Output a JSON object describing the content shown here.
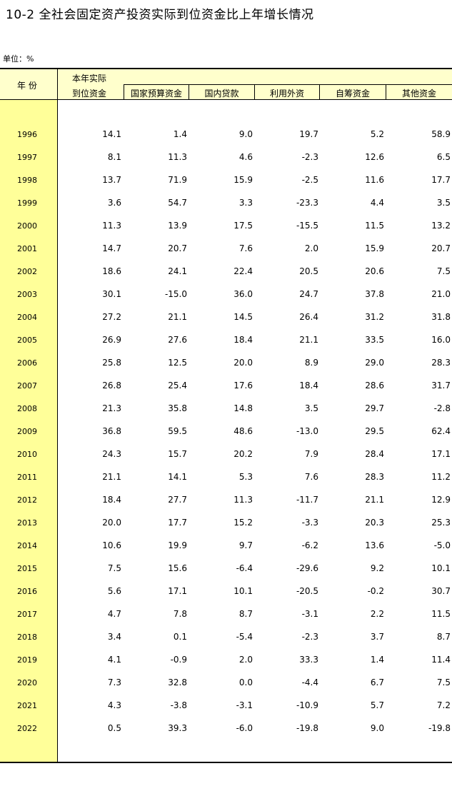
{
  "title": "10-2  全社会固定资产投资实际到位资金比上年增长情况",
  "unit": "单位：%",
  "headers": {
    "year": "年 份",
    "total_line1": "本年实际",
    "total_line2": "到位资金",
    "cols": [
      "国家预算资金",
      "国内贷款",
      "利用外资",
      "自筹资金",
      "其他资金"
    ]
  },
  "rows": [
    {
      "year": "1996",
      "v": [
        "14.1",
        "1.4",
        "9.0",
        "19.7",
        "5.2",
        "58.9"
      ]
    },
    {
      "year": "1997",
      "v": [
        "8.1",
        "11.3",
        "4.6",
        "-2.3",
        "12.6",
        "6.5"
      ]
    },
    {
      "year": "1998",
      "v": [
        "13.7",
        "71.9",
        "15.9",
        "-2.5",
        "11.6",
        "17.7"
      ]
    },
    {
      "year": "1999",
      "v": [
        "3.6",
        "54.7",
        "3.3",
        "-23.3",
        "4.4",
        "3.5"
      ]
    },
    {
      "year": "2000",
      "v": [
        "11.3",
        "13.9",
        "17.5",
        "-15.5",
        "11.5",
        "13.2"
      ]
    },
    {
      "year": "2001",
      "v": [
        "14.7",
        "20.7",
        "7.6",
        "2.0",
        "15.9",
        "20.7"
      ]
    },
    {
      "year": "2002",
      "v": [
        "18.6",
        "24.1",
        "22.4",
        "20.5",
        "20.6",
        "7.5"
      ]
    },
    {
      "year": "2003",
      "v": [
        "30.1",
        "-15.0",
        "36.0",
        "24.7",
        "37.8",
        "21.0"
      ]
    },
    {
      "year": "2004",
      "v": [
        "27.2",
        "21.1",
        "14.5",
        "26.4",
        "31.2",
        "31.8"
      ]
    },
    {
      "year": "2005",
      "v": [
        "26.9",
        "27.6",
        "18.4",
        "21.1",
        "33.5",
        "16.0"
      ]
    },
    {
      "year": "2006",
      "v": [
        "25.8",
        "12.5",
        "20.0",
        "8.9",
        "29.0",
        "28.3"
      ]
    },
    {
      "year": "2007",
      "v": [
        "26.8",
        "25.4",
        "17.6",
        "18.4",
        "28.6",
        "31.7"
      ]
    },
    {
      "year": "2008",
      "v": [
        "21.3",
        "35.8",
        "14.8",
        "3.5",
        "29.7",
        "-2.8"
      ]
    },
    {
      "year": "2009",
      "v": [
        "36.8",
        "59.5",
        "48.6",
        "-13.0",
        "29.5",
        "62.4"
      ]
    },
    {
      "year": "2010",
      "v": [
        "24.3",
        "15.7",
        "20.2",
        "7.9",
        "28.4",
        "17.1"
      ]
    },
    {
      "year": "2011",
      "v": [
        "21.1",
        "14.1",
        "5.3",
        "7.6",
        "28.3",
        "11.2"
      ]
    },
    {
      "year": "2012",
      "v": [
        "18.4",
        "27.7",
        "11.3",
        "-11.7",
        "21.1",
        "12.9"
      ]
    },
    {
      "year": "2013",
      "v": [
        "20.0",
        "17.7",
        "15.2",
        "-3.3",
        "20.3",
        "25.3"
      ]
    },
    {
      "year": "2014",
      "v": [
        "10.6",
        "19.9",
        "9.7",
        "-6.2",
        "13.6",
        "-5.0"
      ]
    },
    {
      "year": "2015",
      "v": [
        "7.5",
        "15.6",
        "-6.4",
        "-29.6",
        "9.2",
        "10.1"
      ]
    },
    {
      "year": "2016",
      "v": [
        "5.6",
        "17.1",
        "10.1",
        "-20.5",
        "-0.2",
        "30.7"
      ]
    },
    {
      "year": "2017",
      "v": [
        "4.7",
        "7.8",
        "8.7",
        "-3.1",
        "2.2",
        "11.5"
      ]
    },
    {
      "year": "2018",
      "v": [
        "3.4",
        "0.1",
        "-5.4",
        "-2.3",
        "3.7",
        "8.7"
      ]
    },
    {
      "year": "2019",
      "v": [
        "4.1",
        "-0.9",
        "2.0",
        "33.3",
        "1.4",
        "11.4"
      ]
    },
    {
      "year": "2020",
      "v": [
        "7.3",
        "32.8",
        "0.0",
        "-4.4",
        "6.7",
        "7.5"
      ]
    },
    {
      "year": "2021",
      "v": [
        "4.3",
        "-3.8",
        "-3.1",
        "-10.9",
        "5.7",
        "7.2"
      ]
    },
    {
      "year": "2022",
      "v": [
        "0.5",
        "39.3",
        "-6.0",
        "-19.8",
        "9.0",
        "-19.8"
      ]
    }
  ]
}
